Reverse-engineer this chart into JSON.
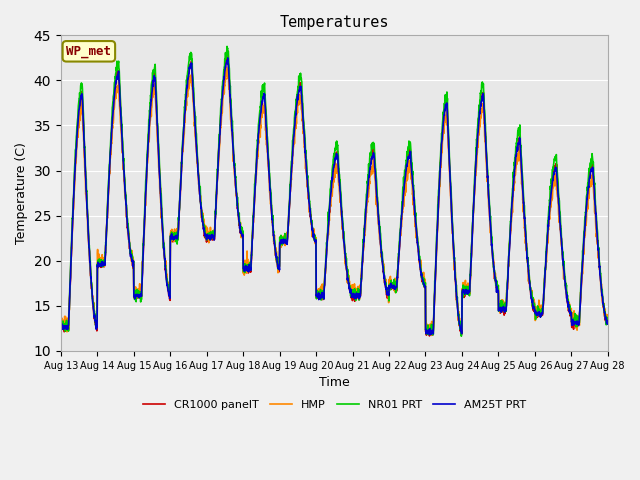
{
  "title": "Temperatures",
  "xlabel": "Time",
  "ylabel": "Temperature (C)",
  "ylim": [
    10,
    45
  ],
  "series": [
    "CR1000 panelT",
    "HMP",
    "NR01 PRT",
    "AM25T PRT"
  ],
  "colors": [
    "#cc0000",
    "#ff8800",
    "#00cc00",
    "#0000cc"
  ],
  "linewidth": 1.2,
  "x_tick_labels": [
    "Aug 13",
    "Aug 14",
    "Aug 15",
    "Aug 16",
    "Aug 17",
    "Aug 18",
    "Aug 19",
    "Aug 20",
    "Aug 21",
    "Aug 22",
    "Aug 23",
    "Aug 24",
    "Aug 25",
    "Aug 26",
    "Aug 27",
    "Aug 28"
  ],
  "wp_met_label": "WP_met",
  "wp_met_bg": "#ffffcc",
  "wp_met_border": "#888800",
  "wp_met_text_color": "#880000",
  "fig_bg": "#f0f0f0",
  "axes_bg": "#e8e8e8",
  "grid_color": "#ffffff",
  "peak_temps": [
    38.5,
    41.0,
    40.5,
    42.0,
    42.5,
    38.5,
    39.5,
    32.0,
    32.0,
    32.0,
    37.5,
    38.5,
    33.5,
    30.5,
    30.5
  ],
  "trough_temps": [
    12.5,
    19.5,
    16.0,
    22.5,
    22.5,
    19.0,
    22.0,
    16.0,
    16.0,
    17.0,
    12.0,
    16.5,
    14.5,
    14.0,
    13.0
  ]
}
